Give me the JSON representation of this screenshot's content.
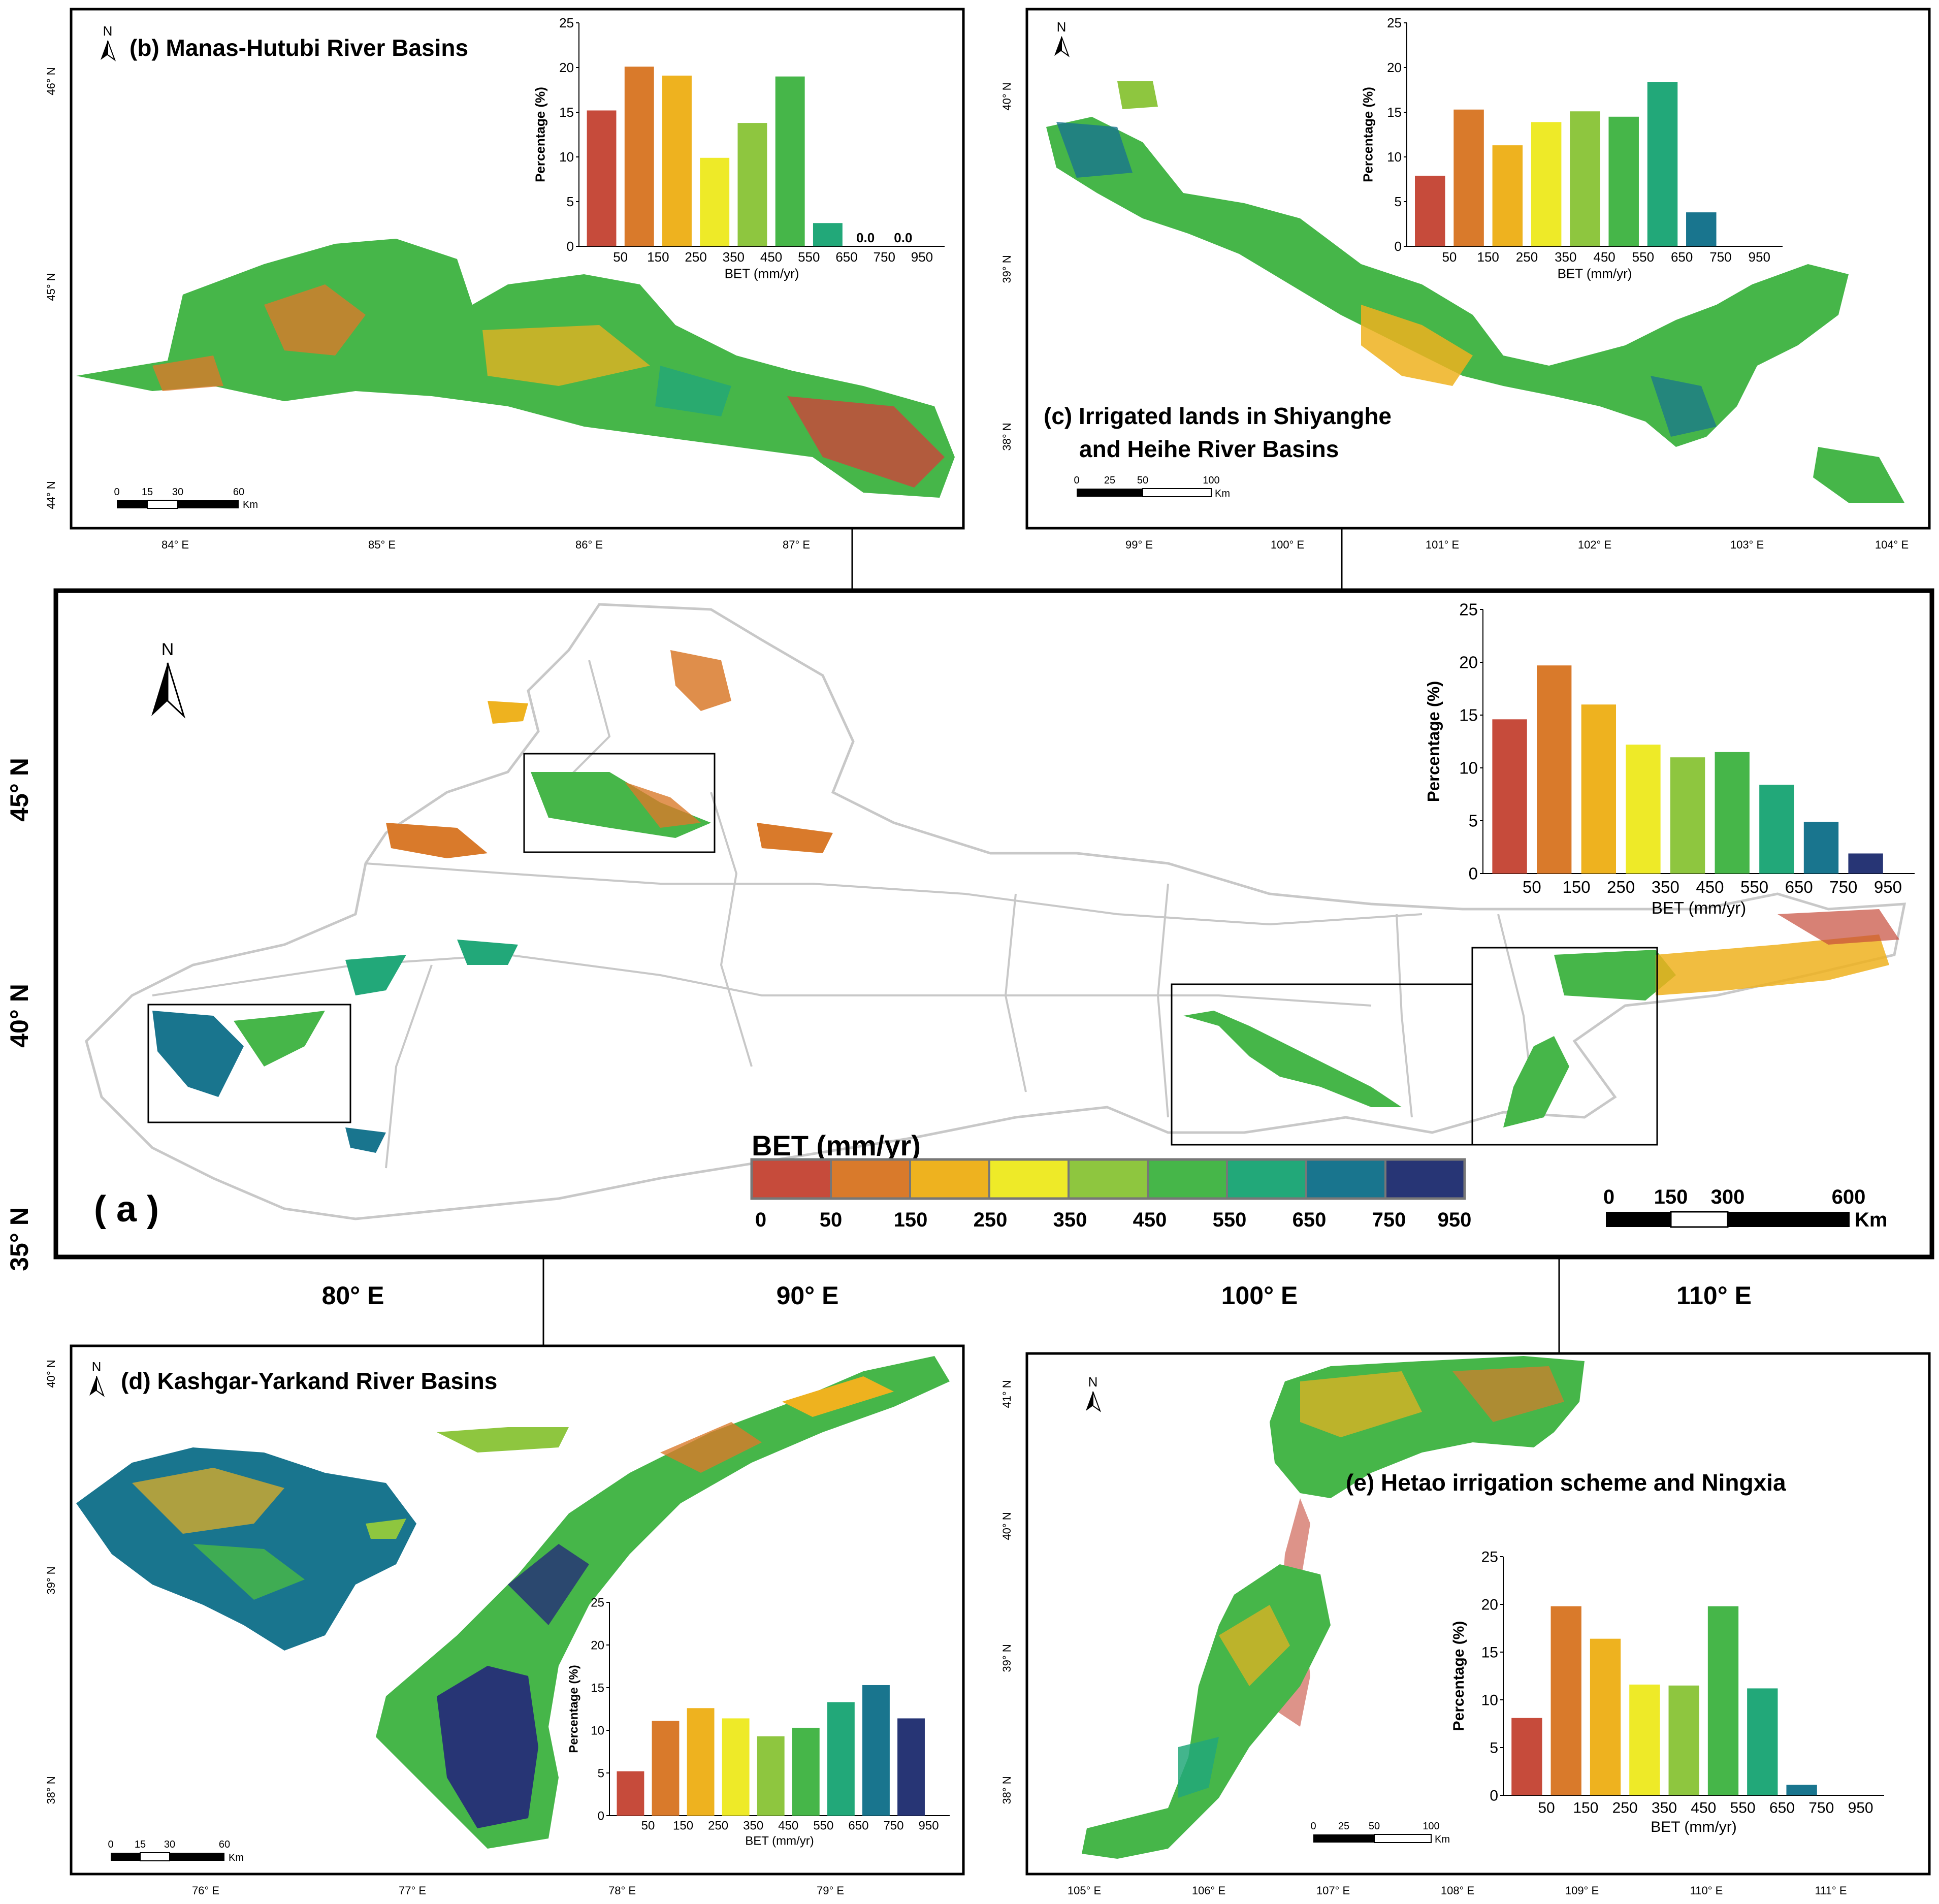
{
  "colors": {
    "bins": [
      "#c64b3b",
      "#d97a2b",
      "#eeb21f",
      "#eeea28",
      "#8ec63f",
      "#46b649",
      "#22a879",
      "#19758e",
      "#273575"
    ],
    "frame": "#000000",
    "boundary": "#c8c8c8"
  },
  "legend": {
    "title": "BET (mm/yr)",
    "labels": [
      "0",
      "50",
      "150",
      "250",
      "350",
      "450",
      "550",
      "650",
      "750",
      "950"
    ]
  },
  "main_map": {
    "panel_label": "( a )",
    "lon_labels": [
      "80° E",
      "90° E",
      "100° E",
      "110° E"
    ],
    "lat_labels": [
      "45° N",
      "40° N",
      "35° N"
    ],
    "north": "N",
    "scalebar": {
      "ticks": [
        "0",
        "150",
        "300",
        "600"
      ],
      "unit": "Km"
    }
  },
  "panels": {
    "b": {
      "title": "(b) Manas-Hutubi River Basins",
      "lon_labels": [
        "84° E",
        "85° E",
        "86° E",
        "87° E"
      ],
      "lat_labels": [
        "46° N",
        "45° N",
        "44° N"
      ],
      "north": "N",
      "scalebar": {
        "ticks": [
          "0",
          "15",
          "30",
          "60"
        ],
        "unit": "Km"
      }
    },
    "c": {
      "title_line1": "(c) Irrigated lands in Shiyanghe",
      "title_line2": "and Heihe River Basins",
      "lon_labels": [
        "99° E",
        "100° E",
        "101° E",
        "102° E",
        "103° E",
        "104° E"
      ],
      "lat_labels": [
        "40° N",
        "39° N",
        "38° N"
      ],
      "north": "N",
      "scalebar": {
        "ticks": [
          "0",
          "25",
          "50",
          "100"
        ],
        "unit": "Km"
      }
    },
    "d": {
      "title": "(d) Kashgar-Yarkand River Basins",
      "lon_labels": [
        "76° E",
        "77° E",
        "78° E",
        "79° E"
      ],
      "lat_labels": [
        "40° N",
        "39° N",
        "38° N"
      ],
      "north": "N",
      "scalebar": {
        "ticks": [
          "0",
          "15",
          "30",
          "60"
        ],
        "unit": "Km"
      }
    },
    "e": {
      "title": "(e) Hetao irrigation scheme and Ningxia",
      "lon_labels": [
        "105° E",
        "106° E",
        "107° E",
        "108° E",
        "109° E",
        "110° E",
        "111° E"
      ],
      "lat_labels": [
        "41° N",
        "40° N",
        "39° N",
        "38° N"
      ],
      "north": "N",
      "scalebar": {
        "ticks": [
          "0",
          "25",
          "50",
          "100"
        ],
        "unit": "Km"
      }
    }
  },
  "chart_data": [
    {
      "id": "a",
      "type": "bar",
      "categories": [
        "50",
        "150",
        "250",
        "350",
        "450",
        "550",
        "650",
        "750",
        "950"
      ],
      "values": [
        14.6,
        19.7,
        16.0,
        12.2,
        11.0,
        11.5,
        8.4,
        4.9,
        1.9
      ],
      "xlabel": "BET (mm/yr)",
      "ylabel": "Percentage (%)",
      "ylim": [
        0,
        25
      ],
      "yticks": [
        "0",
        "5",
        "10",
        "15",
        "20",
        "25"
      ],
      "value_labels": []
    },
    {
      "id": "b",
      "type": "bar",
      "categories": [
        "50",
        "150",
        "250",
        "350",
        "450",
        "550",
        "650",
        "750",
        "950"
      ],
      "values": [
        15.2,
        20.1,
        19.1,
        9.9,
        13.8,
        19.0,
        2.6,
        0.0,
        0.0
      ],
      "xlabel": "BET (mm/yr)",
      "ylabel": "Percentage (%)",
      "ylim": [
        0,
        25
      ],
      "yticks": [
        "0",
        "5",
        "10",
        "15",
        "20",
        "25"
      ],
      "value_labels": [
        "",
        "",
        "",
        "",
        "",
        "",
        "",
        "0.0",
        "0.0"
      ]
    },
    {
      "id": "c",
      "type": "bar",
      "categories": [
        "50",
        "150",
        "250",
        "350",
        "450",
        "550",
        "650",
        "750",
        "950"
      ],
      "values": [
        7.9,
        15.3,
        11.3,
        13.9,
        15.1,
        14.5,
        18.4,
        3.8,
        0.0
      ],
      "xlabel": "BET (mm/yr)",
      "ylabel": "Percentage (%)",
      "ylim": [
        0,
        25
      ],
      "yticks": [
        "0",
        "5",
        "10",
        "15",
        "20",
        "25"
      ],
      "value_labels": []
    },
    {
      "id": "d",
      "type": "bar",
      "categories": [
        "50",
        "150",
        "250",
        "350",
        "450",
        "550",
        "650",
        "750",
        "950"
      ],
      "values": [
        5.2,
        11.1,
        12.6,
        11.4,
        9.3,
        10.3,
        13.3,
        15.3,
        11.4
      ],
      "xlabel": "BET (mm/yr)",
      "ylabel": "Percentage (%)",
      "ylim": [
        0,
        25
      ],
      "yticks": [
        "0",
        "5",
        "10",
        "15",
        "20",
        "25"
      ],
      "value_labels": []
    },
    {
      "id": "e",
      "type": "bar",
      "categories": [
        "50",
        "150",
        "250",
        "350",
        "450",
        "550",
        "650",
        "750",
        "950"
      ],
      "values": [
        8.1,
        19.8,
        16.4,
        11.6,
        11.5,
        19.8,
        11.2,
        1.1,
        0.0
      ],
      "xlabel": "BET (mm/yr)",
      "ylabel": "Percentage (%)",
      "ylim": [
        0,
        25
      ],
      "yticks": [
        "0",
        "5",
        "10",
        "15",
        "20",
        "25"
      ],
      "value_labels": []
    }
  ]
}
